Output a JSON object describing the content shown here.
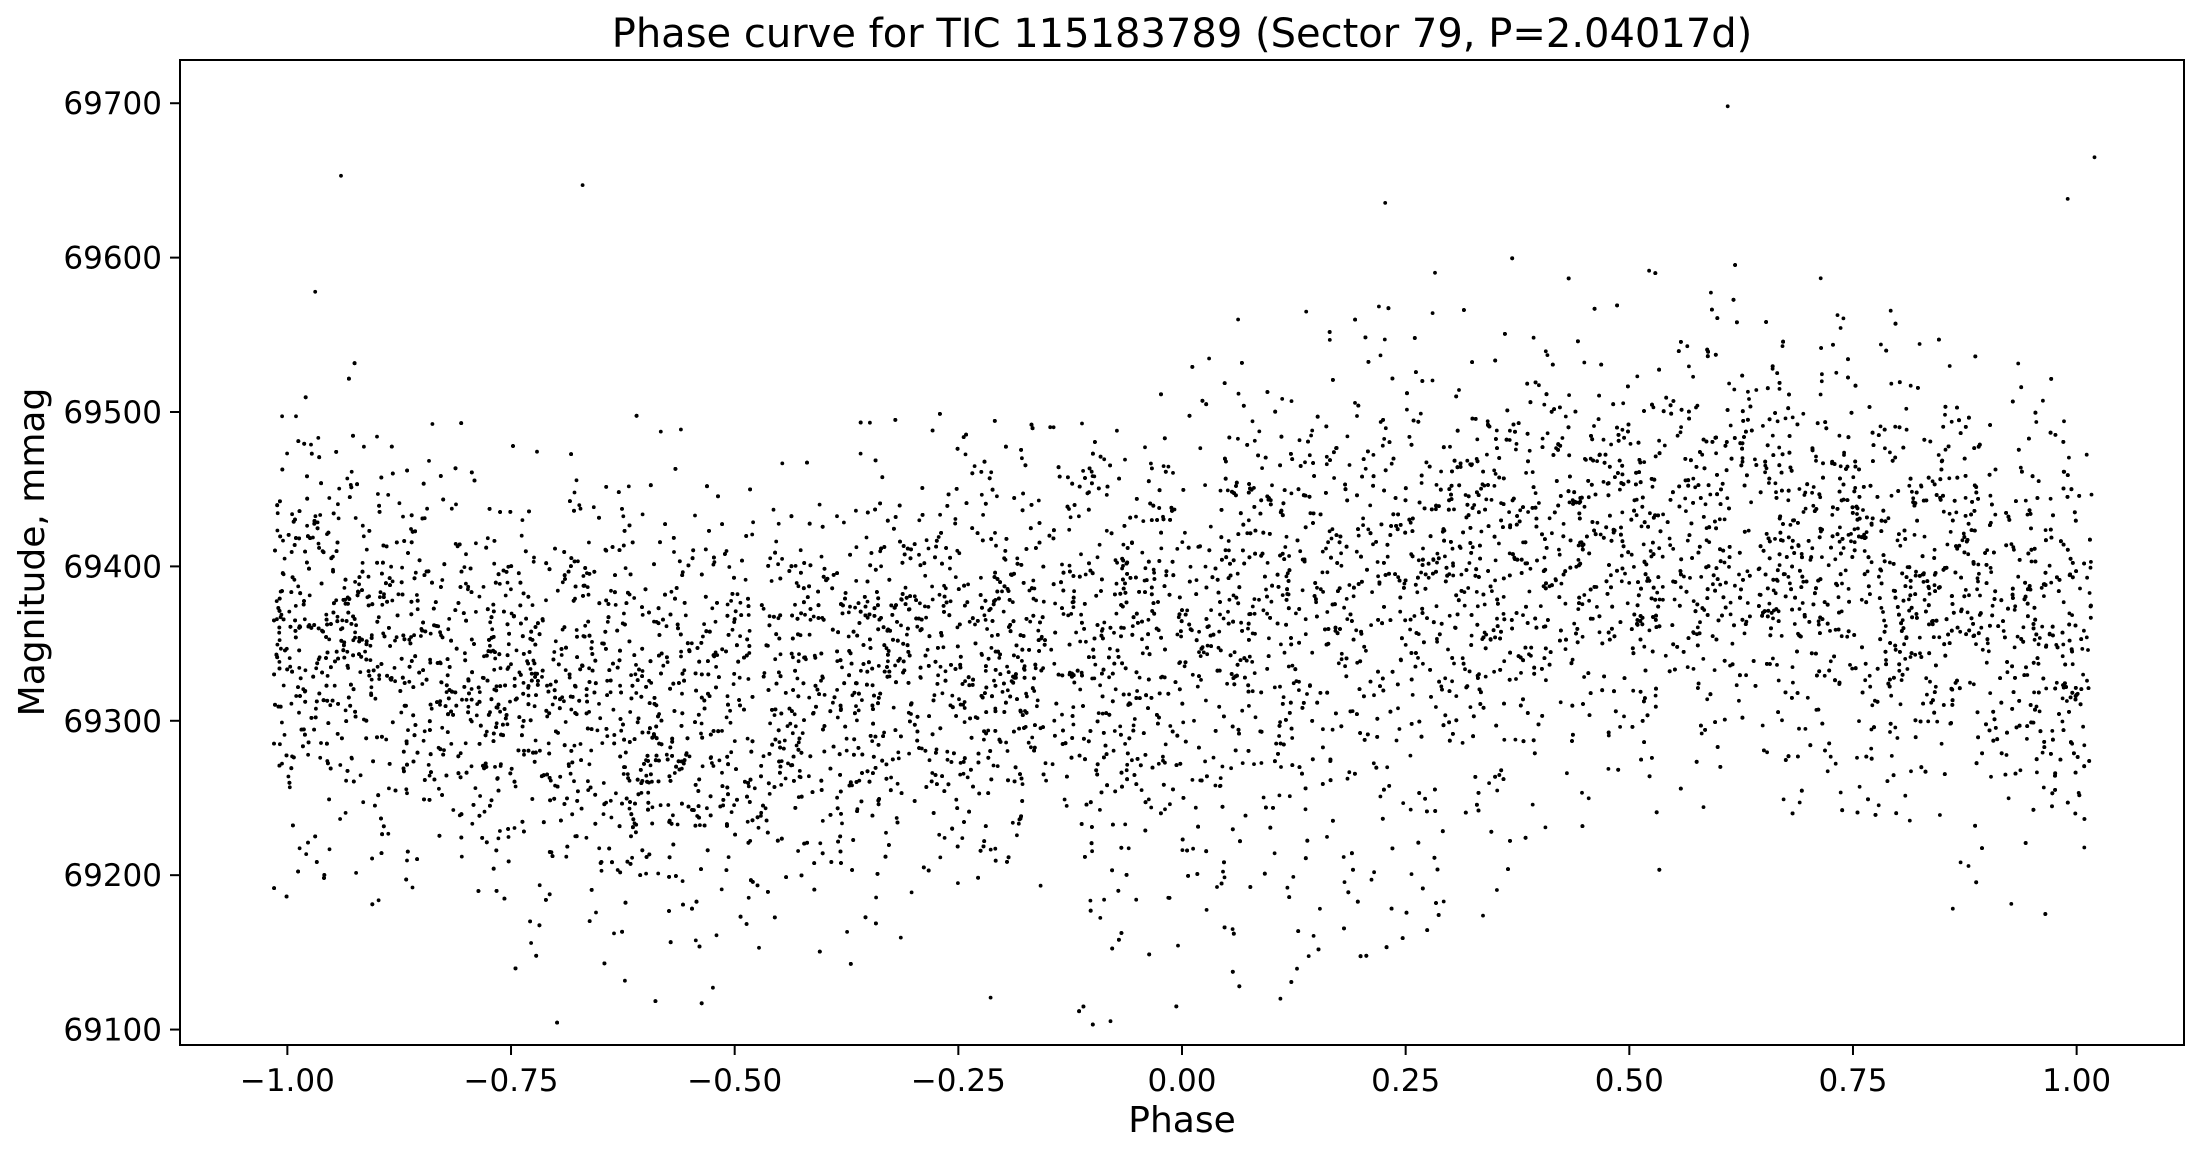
{
  "chart_data": {
    "type": "scatter",
    "title": "Phase curve for TIC 115183789 (Sector 79, P=2.04017d)",
    "xlabel": "Phase",
    "ylabel": "Magnitude, mmag",
    "xlim": [
      -1.12,
      1.12
    ],
    "ylim": [
      69090,
      69728
    ],
    "xticks": [
      -1.0,
      -0.75,
      -0.5,
      -0.25,
      0.0,
      0.25,
      0.5,
      0.75,
      1.0
    ],
    "xtick_labels": [
      "−1.00",
      "−0.75",
      "−0.50",
      "−0.25",
      "0.00",
      "0.25",
      "0.50",
      "0.75",
      "1.00"
    ],
    "yticks": [
      69100,
      69200,
      69300,
      69400,
      69500,
      69600,
      69700
    ],
    "ytick_labels": [
      "69100",
      "69200",
      "69300",
      "69400",
      "69500",
      "69600",
      "69700"
    ],
    "grid": false,
    "marker_color": "#000000",
    "series_trend": {
      "x": [
        -1.0,
        -0.75,
        -0.5,
        -0.25,
        0.0,
        0.25,
        0.5,
        0.75,
        1.0
      ],
      "y": [
        69362,
        69320,
        69305,
        69330,
        69360,
        69400,
        69415,
        69395,
        69360
      ]
    },
    "notable_points": [
      {
        "x": 0.61,
        "y": 69698
      },
      {
        "x": 1.02,
        "y": 69665
      },
      {
        "x": 0.11,
        "y": 69120
      },
      {
        "x": -0.94,
        "y": 69653
      },
      {
        "x": -0.67,
        "y": 69647
      },
      {
        "x": 0.99,
        "y": 69638
      }
    ]
  }
}
